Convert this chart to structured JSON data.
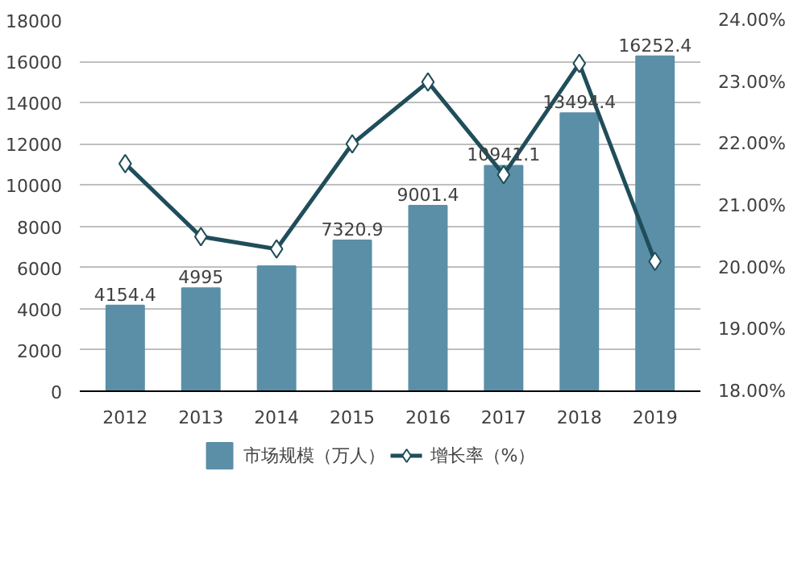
{
  "chart_data": {
    "type": "bar",
    "categories": [
      "2012",
      "2013",
      "2014",
      "2015",
      "2016",
      "2017",
      "2018",
      "2019"
    ],
    "series": [
      {
        "name": "市场规模（万人）",
        "color": "#5b8fa8",
        "values": [
          4154.4,
          4995,
          6070,
          7320.9,
          9001.4,
          10941.1,
          13494.4,
          16252.4
        ],
        "value_labels": [
          "4154.4",
          "4995",
          null,
          "7320.9",
          "9001.4",
          "10941.1",
          "13494.4",
          "16252.4"
        ]
      },
      {
        "name": "增长率（%）",
        "type": "line",
        "axis": "y2",
        "color": "#1f4e5a",
        "marker": "diamond",
        "values": [
          21.68,
          20.5,
          20.3,
          22.0,
          23.0,
          21.5,
          23.3,
          20.1
        ]
      }
    ],
    "ylim": [
      0,
      18000
    ],
    "yticks": [
      0,
      2000,
      4000,
      6000,
      8000,
      10000,
      12000,
      14000,
      16000,
      18000
    ],
    "y2lim": [
      18,
      24
    ],
    "y2ticks": [
      {
        "value": 18,
        "label": "18.00%"
      },
      {
        "value": 19,
        "label": "19.00%"
      },
      {
        "value": 20,
        "label": "20.00%"
      },
      {
        "value": 21,
        "label": "21.00%"
      },
      {
        "value": 22,
        "label": "22.00%"
      },
      {
        "value": 23,
        "label": "23.00%"
      },
      {
        "value": 24,
        "label": "24.00%"
      }
    ],
    "grid": "y",
    "legend": "bottom"
  }
}
